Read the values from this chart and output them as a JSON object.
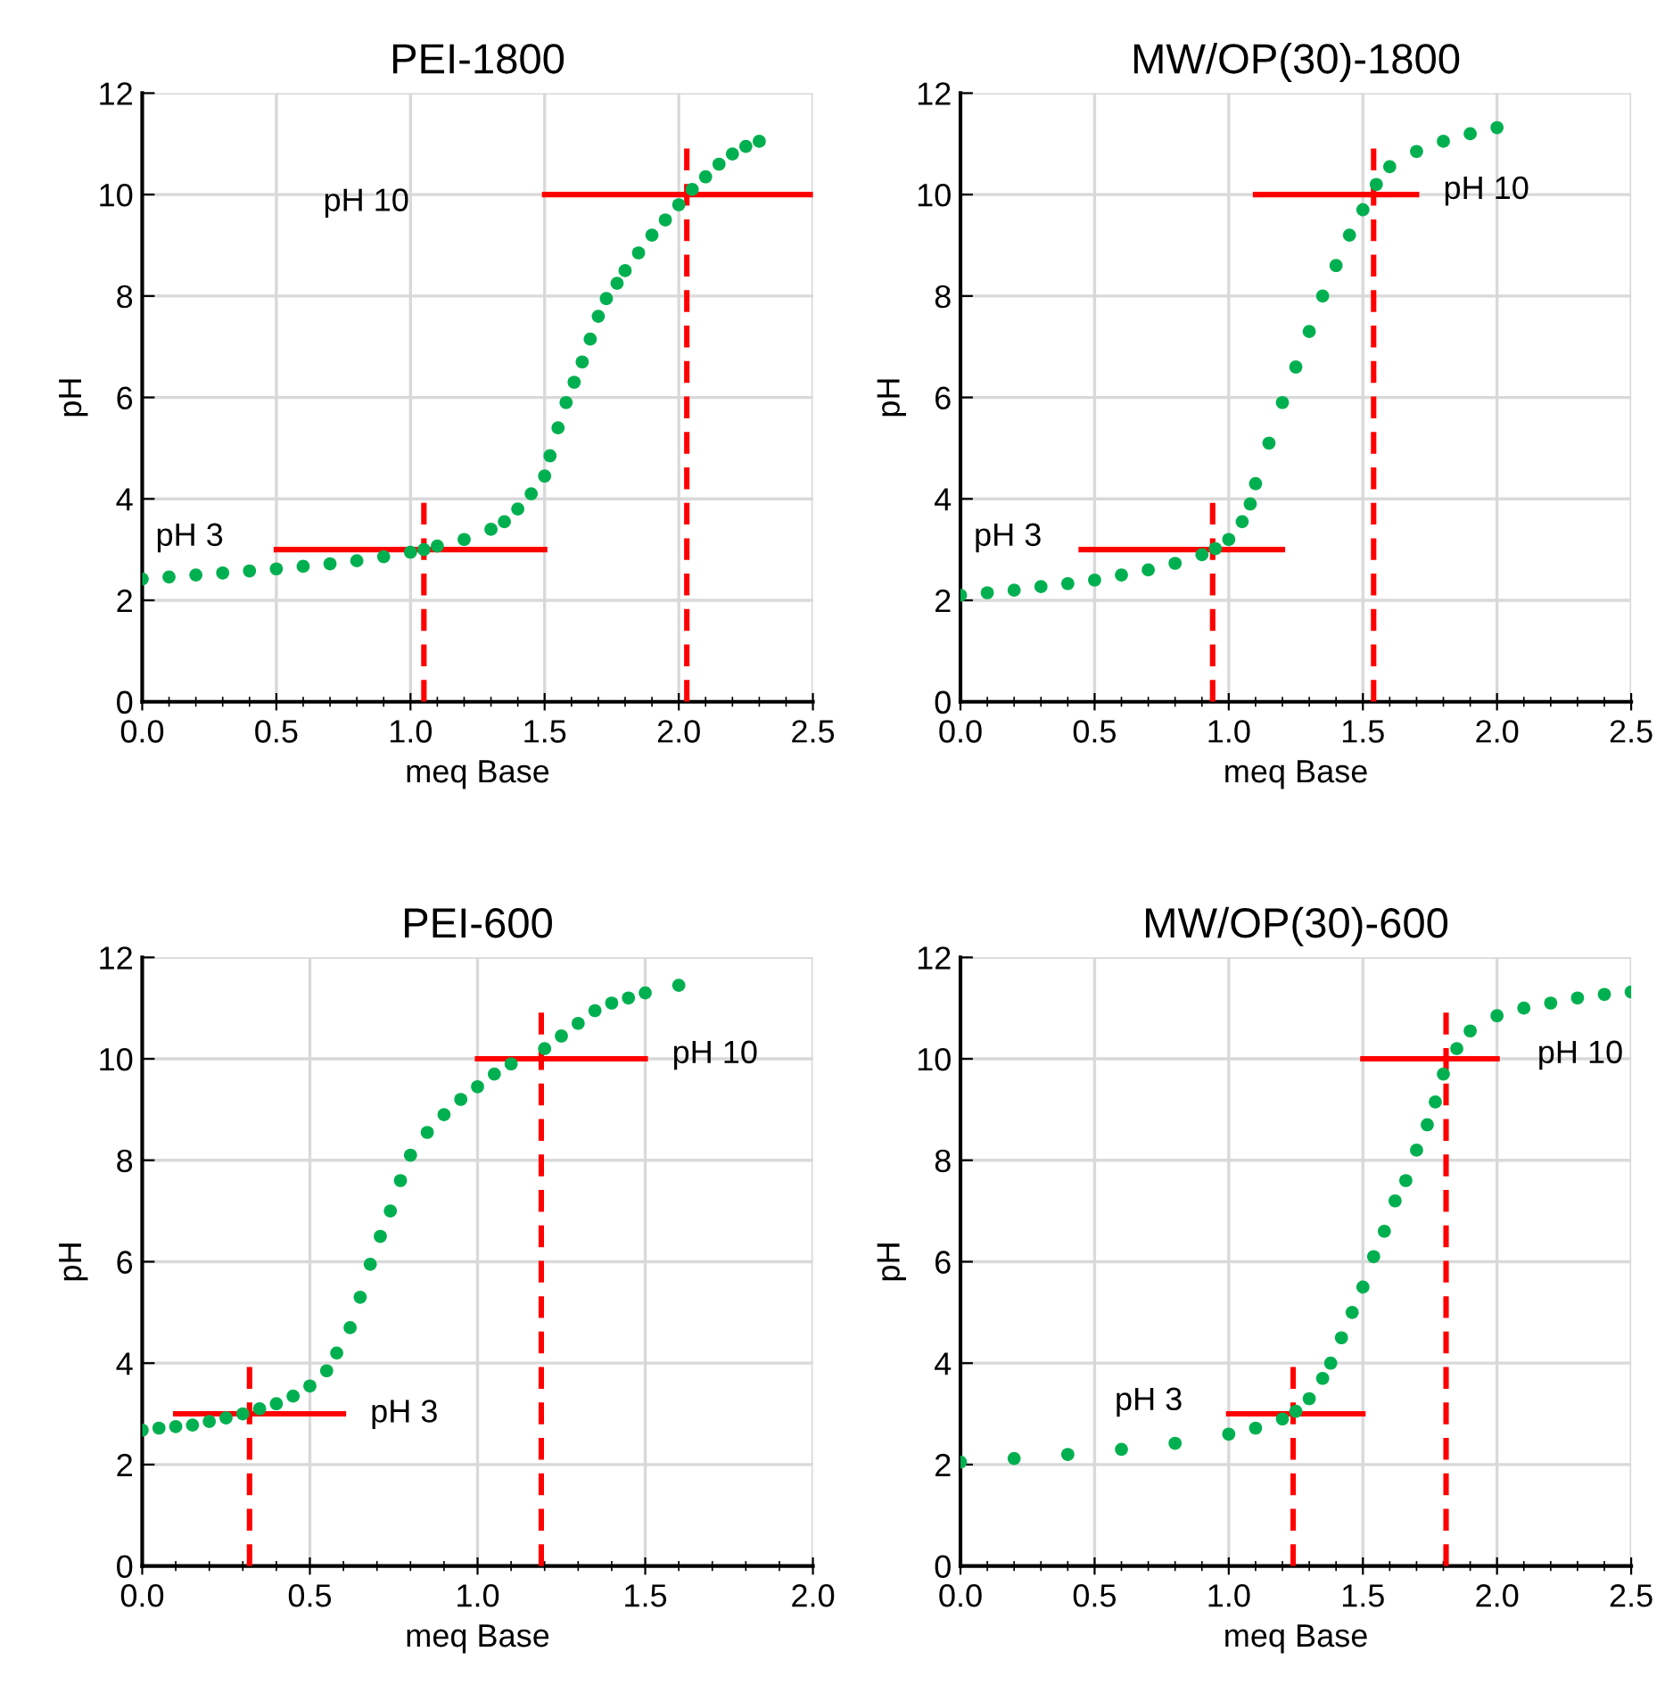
{
  "chart_data": [
    {
      "type": "scatter",
      "title": "PEI-1800",
      "xlabel": "meq Base",
      "ylabel": "pH",
      "xlim": [
        0,
        2.5
      ],
      "ylim": [
        0,
        12
      ],
      "yticks": [
        0,
        2,
        4,
        6,
        8,
        10,
        12
      ],
      "xticks": [
        {
          "value": 0,
          "label": "0.0"
        },
        {
          "value": 0.1,
          "label": null
        },
        {
          "value": 0.2,
          "label": null
        },
        {
          "value": 0.3,
          "label": null
        },
        {
          "value": 0.4,
          "label": null
        },
        0.5,
        {
          "value": 0.6,
          "label": null
        },
        {
          "value": 0.7,
          "label": null
        },
        {
          "value": 0.8,
          "label": null
        },
        {
          "value": 0.9,
          "label": null
        },
        {
          "value": 1,
          "label": "1.0"
        },
        {
          "value": 1.1,
          "label": null
        },
        {
          "value": 1.2,
          "label": null
        },
        {
          "value": 1.3,
          "label": null
        },
        {
          "value": 1.4,
          "label": null
        },
        1.5,
        {
          "value": 1.6,
          "label": null
        },
        {
          "value": 1.7,
          "label": null
        },
        {
          "value": 1.8,
          "label": null
        },
        {
          "value": 1.9,
          "label": null
        },
        {
          "value": 2,
          "label": "2.0"
        },
        {
          "value": 2.1,
          "label": null
        },
        {
          "value": 2.2,
          "label": null
        },
        {
          "value": 2.3,
          "label": null
        },
        {
          "value": 2.4,
          "label": null
        },
        2.5
      ],
      "grid": true,
      "marker": "circle",
      "series": [
        {
          "color": "#00b050",
          "x": [
            0,
            0.1,
            0.2,
            0.3,
            0.4,
            0.5,
            0.6,
            0.7,
            0.8,
            0.9,
            1.0,
            1.05,
            1.1,
            1.2,
            1.3,
            1.35,
            1.4,
            1.45,
            1.5,
            1.52,
            1.55,
            1.58,
            1.61,
            1.64,
            1.67,
            1.7,
            1.73,
            1.77,
            1.8,
            1.85,
            1.9,
            1.95,
            2.0,
            2.05,
            2.1,
            2.15,
            2.2,
            2.25,
            2.3
          ],
          "values": [
            2.42,
            2.46,
            2.5,
            2.54,
            2.58,
            2.62,
            2.67,
            2.72,
            2.78,
            2.86,
            2.95,
            3.0,
            3.07,
            3.2,
            3.4,
            3.55,
            3.8,
            4.1,
            4.45,
            4.85,
            5.4,
            5.9,
            6.3,
            6.7,
            7.15,
            7.6,
            7.95,
            8.25,
            8.5,
            8.85,
            9.2,
            9.5,
            9.8,
            10.1,
            10.35,
            10.6,
            10.8,
            10.95,
            11.05
          ]
        },
        {
          "type": "line",
          "marker": "none",
          "color": "#ff0000",
          "line_style": "solid",
          "x": [
            0.5,
            1.5
          ],
          "values": [
            3,
            3
          ]
        },
        {
          "type": "line",
          "marker": "none",
          "color": "#ff0000",
          "line_style": "solid",
          "x": [
            1.5,
            2.5
          ],
          "values": [
            10,
            10
          ]
        },
        {
          "type": "line",
          "marker": "none",
          "color": "#ff0000",
          "line_style": "dashed",
          "x": [
            1.05,
            1.05
          ],
          "values": [
            0,
            4
          ]
        },
        {
          "type": "line",
          "marker": "none",
          "color": "#ff0000",
          "line_style": "dashed",
          "x": [
            2.03,
            2.03
          ],
          "values": [
            0,
            11
          ]
        }
      ],
      "annotations": [
        "pH 3",
        "pH 10"
      ]
    },
    {
      "type": "scatter",
      "title": "MW/OP(30)-1800",
      "xlabel": "meq Base",
      "ylabel": "pH",
      "xlim": [
        0,
        2.5
      ],
      "ylim": [
        0,
        12
      ],
      "yticks": [
        0,
        2,
        4,
        6,
        8,
        10,
        12
      ],
      "xticks": [
        {
          "value": 0,
          "label": "0.0"
        },
        {
          "value": 0.1,
          "label": null
        },
        {
          "value": 0.2,
          "label": null
        },
        {
          "value": 0.3,
          "label": null
        },
        {
          "value": 0.4,
          "label": null
        },
        0.5,
        {
          "value": 0.6,
          "label": null
        },
        {
          "value": 0.7,
          "label": null
        },
        {
          "value": 0.8,
          "label": null
        },
        {
          "value": 0.9,
          "label": null
        },
        {
          "value": 1,
          "label": "1.0"
        },
        {
          "value": 1.1,
          "label": null
        },
        {
          "value": 1.2,
          "label": null
        },
        {
          "value": 1.3,
          "label": null
        },
        {
          "value": 1.4,
          "label": null
        },
        1.5,
        {
          "value": 1.6,
          "label": null
        },
        {
          "value": 1.7,
          "label": null
        },
        {
          "value": 1.8,
          "label": null
        },
        {
          "value": 1.9,
          "label": null
        },
        {
          "value": 2,
          "label": "2.0"
        },
        {
          "value": 2.1,
          "label": null
        },
        {
          "value": 2.2,
          "label": null
        },
        {
          "value": 2.3,
          "label": null
        },
        {
          "value": 2.4,
          "label": null
        },
        2.5
      ],
      "grid": true,
      "marker": "circle",
      "series": [
        {
          "color": "#00b050",
          "x": [
            0,
            0.1,
            0.2,
            0.3,
            0.4,
            0.5,
            0.6,
            0.7,
            0.8,
            0.9,
            0.95,
            1.0,
            1.05,
            1.08,
            1.1,
            1.15,
            1.2,
            1.25,
            1.3,
            1.35,
            1.4,
            1.45,
            1.5,
            1.55,
            1.6,
            1.7,
            1.8,
            1.9,
            2.0
          ],
          "values": [
            2.1,
            2.15,
            2.2,
            2.27,
            2.33,
            2.4,
            2.5,
            2.6,
            2.73,
            2.9,
            3.02,
            3.2,
            3.55,
            3.9,
            4.3,
            5.1,
            5.9,
            6.6,
            7.3,
            8.0,
            8.6,
            9.2,
            9.7,
            10.2,
            10.55,
            10.85,
            11.05,
            11.2,
            11.32
          ]
        },
        {
          "type": "line",
          "marker": "none",
          "color": "#ff0000",
          "line_style": "solid",
          "x": [
            0.45,
            1.2
          ],
          "values": [
            3,
            3
          ]
        },
        {
          "type": "line",
          "marker": "none",
          "color": "#ff0000",
          "line_style": "solid",
          "x": [
            1.1,
            1.7
          ],
          "values": [
            10,
            10
          ]
        },
        {
          "type": "line",
          "marker": "none",
          "color": "#ff0000",
          "line_style": "dashed",
          "x": [
            0.94,
            0.94
          ],
          "values": [
            0,
            4
          ]
        },
        {
          "type": "line",
          "marker": "none",
          "color": "#ff0000",
          "line_style": "dashed",
          "x": [
            1.54,
            1.54
          ],
          "values": [
            0,
            11
          ]
        }
      ],
      "annotations": [
        "pH 3",
        "pH 10"
      ]
    },
    {
      "type": "scatter",
      "title": "PEI-600",
      "xlabel": "meq Base",
      "ylabel": "pH",
      "xlim": [
        0,
        2.0
      ],
      "ylim": [
        0,
        12
      ],
      "yticks": [
        0,
        2,
        4,
        6,
        8,
        10,
        12
      ],
      "xticks": [
        {
          "value": 0,
          "label": "0.0"
        },
        {
          "value": 0.1,
          "label": null
        },
        {
          "value": 0.2,
          "label": null
        },
        {
          "value": 0.3,
          "label": null
        },
        {
          "value": 0.4,
          "label": null
        },
        0.5,
        {
          "value": 0.6,
          "label": null
        },
        {
          "value": 0.7,
          "label": null
        },
        {
          "value": 0.8,
          "label": null
        },
        {
          "value": 0.9,
          "label": null
        },
        {
          "value": 1,
          "label": "1.0"
        },
        {
          "value": 1.1,
          "label": null
        },
        {
          "value": 1.2,
          "label": null
        },
        {
          "value": 1.3,
          "label": null
        },
        {
          "value": 1.4,
          "label": null
        },
        1.5,
        {
          "value": 1.6,
          "label": null
        },
        {
          "value": 1.7,
          "label": null
        },
        {
          "value": 1.8,
          "label": null
        },
        {
          "value": 1.9,
          "label": null
        },
        {
          "value": 2,
          "label": "2.0"
        }
      ],
      "grid": true,
      "marker": "circle",
      "series": [
        {
          "color": "#00b050",
          "x": [
            0,
            0.05,
            0.1,
            0.15,
            0.2,
            0.25,
            0.3,
            0.35,
            0.4,
            0.45,
            0.5,
            0.55,
            0.58,
            0.62,
            0.65,
            0.68,
            0.71,
            0.74,
            0.77,
            0.8,
            0.85,
            0.9,
            0.95,
            1.0,
            1.05,
            1.1,
            1.2,
            1.25,
            1.3,
            1.35,
            1.4,
            1.45,
            1.5,
            1.6
          ],
          "values": [
            2.68,
            2.72,
            2.75,
            2.78,
            2.85,
            2.92,
            3.0,
            3.1,
            3.2,
            3.35,
            3.55,
            3.85,
            4.2,
            4.7,
            5.3,
            5.95,
            6.5,
            7.0,
            7.6,
            8.1,
            8.55,
            8.9,
            9.2,
            9.45,
            9.7,
            9.9,
            10.2,
            10.45,
            10.7,
            10.95,
            11.1,
            11.2,
            11.3,
            11.45
          ]
        },
        {
          "type": "line",
          "marker": "none",
          "color": "#ff0000",
          "line_style": "solid",
          "x": [
            0.1,
            0.6
          ],
          "values": [
            3,
            3
          ]
        },
        {
          "type": "line",
          "marker": "none",
          "color": "#ff0000",
          "line_style": "solid",
          "x": [
            1.0,
            1.5
          ],
          "values": [
            10,
            10
          ]
        },
        {
          "type": "line",
          "marker": "none",
          "color": "#ff0000",
          "line_style": "dashed",
          "x": [
            0.32,
            0.32
          ],
          "values": [
            0,
            4
          ]
        },
        {
          "type": "line",
          "marker": "none",
          "color": "#ff0000",
          "line_style": "dashed",
          "x": [
            1.19,
            1.19
          ],
          "values": [
            0,
            11
          ]
        }
      ],
      "annotations": [
        "pH 3",
        "pH 10"
      ]
    },
    {
      "type": "scatter",
      "title": "MW/OP(30)-600",
      "xlabel": "meq Base",
      "ylabel": "pH",
      "xlim": [
        0,
        2.5
      ],
      "ylim": [
        0,
        12
      ],
      "yticks": [
        0,
        2,
        4,
        6,
        8,
        10,
        12
      ],
      "xticks": [
        {
          "value": 0,
          "label": "0.0"
        },
        {
          "value": 0.1,
          "label": null
        },
        {
          "value": 0.2,
          "label": null
        },
        {
          "value": 0.3,
          "label": null
        },
        {
          "value": 0.4,
          "label": null
        },
        0.5,
        {
          "value": 0.6,
          "label": null
        },
        {
          "value": 0.7,
          "label": null
        },
        {
          "value": 0.8,
          "label": null
        },
        {
          "value": 0.9,
          "label": null
        },
        {
          "value": 1,
          "label": "1.0"
        },
        {
          "value": 1.1,
          "label": null
        },
        {
          "value": 1.2,
          "label": null
        },
        {
          "value": 1.3,
          "label": null
        },
        {
          "value": 1.4,
          "label": null
        },
        1.5,
        {
          "value": 1.6,
          "label": null
        },
        {
          "value": 1.7,
          "label": null
        },
        {
          "value": 1.8,
          "label": null
        },
        {
          "value": 1.9,
          "label": null
        },
        {
          "value": 2,
          "label": "2.0"
        },
        {
          "value": 2.1,
          "label": null
        },
        {
          "value": 2.2,
          "label": null
        },
        {
          "value": 2.3,
          "label": null
        },
        {
          "value": 2.4,
          "label": null
        },
        2.5
      ],
      "grid": true,
      "marker": "circle",
      "series": [
        {
          "color": "#00b050",
          "x": [
            0,
            0.2,
            0.4,
            0.6,
            0.8,
            1.0,
            1.1,
            1.2,
            1.25,
            1.3,
            1.35,
            1.38,
            1.42,
            1.46,
            1.5,
            1.54,
            1.58,
            1.62,
            1.66,
            1.7,
            1.74,
            1.77,
            1.8,
            1.85,
            1.9,
            2.0,
            2.1,
            2.2,
            2.3,
            2.4,
            2.5
          ],
          "values": [
            2.05,
            2.12,
            2.2,
            2.3,
            2.42,
            2.6,
            2.72,
            2.9,
            3.05,
            3.3,
            3.7,
            4.0,
            4.5,
            5.0,
            5.5,
            6.1,
            6.6,
            7.2,
            7.6,
            8.2,
            8.7,
            9.15,
            9.7,
            10.2,
            10.55,
            10.85,
            11.0,
            11.1,
            11.2,
            11.27,
            11.32
          ]
        },
        {
          "type": "line",
          "marker": "none",
          "color": "#ff0000",
          "line_style": "solid",
          "x": [
            1.0,
            1.5
          ],
          "values": [
            3,
            3
          ]
        },
        {
          "type": "line",
          "marker": "none",
          "color": "#ff0000",
          "line_style": "solid",
          "x": [
            1.5,
            2.0
          ],
          "values": [
            10,
            10
          ]
        },
        {
          "type": "line",
          "marker": "none",
          "color": "#ff0000",
          "line_style": "dashed",
          "x": [
            1.24,
            1.24
          ],
          "values": [
            0,
            4
          ]
        },
        {
          "type": "line",
          "marker": "none",
          "color": "#ff0000",
          "line_style": "dashed",
          "x": [
            1.81,
            1.81
          ],
          "values": [
            0,
            11
          ]
        }
      ],
      "annotations": [
        "pH 3",
        "pH 10"
      ]
    }
  ]
}
